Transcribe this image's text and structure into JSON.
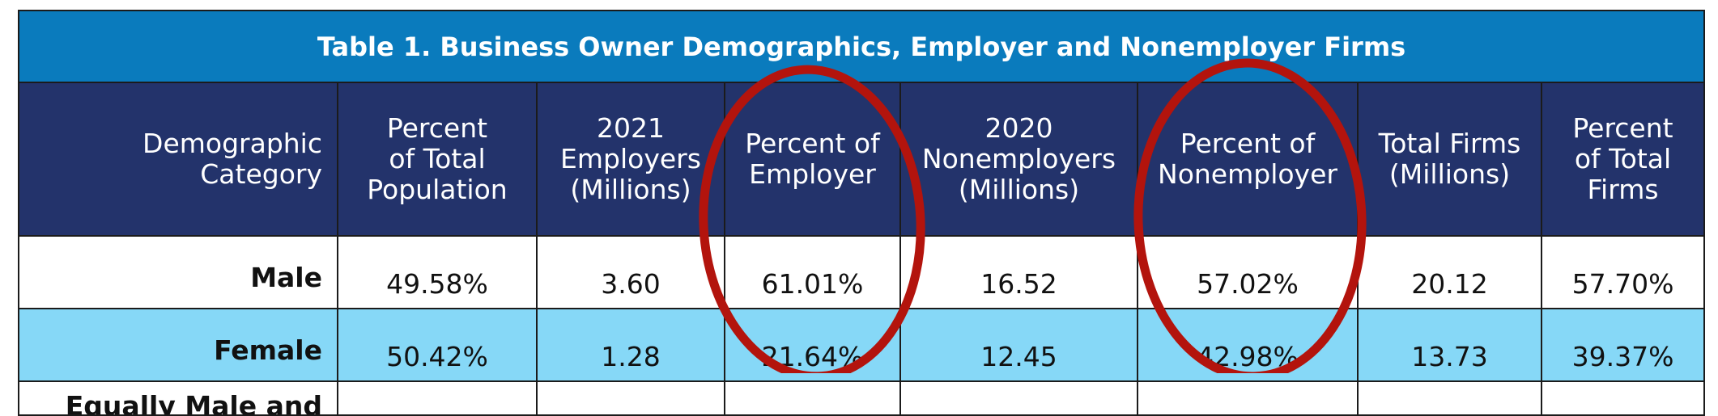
{
  "table": {
    "title": "Table 1. Business Owner Demographics, Employer and Nonemployer Firms",
    "headers": [
      [
        "Demographic",
        "Category"
      ],
      [
        "Percent",
        "of Total",
        "Population"
      ],
      [
        "2021",
        "Employers",
        "(Millions)"
      ],
      [
        "Percent of",
        "Employer"
      ],
      [
        "2020",
        "Nonemployers",
        "(Millions)"
      ],
      [
        "Percent of",
        "Nonemployer"
      ],
      [
        "Total Firms",
        "(Millions)"
      ],
      [
        "Percent",
        "of Total",
        "Firms"
      ]
    ],
    "rows": [
      {
        "label": "Male",
        "cells": [
          "49.58%",
          "3.60",
          "61.01%",
          "16.52",
          "57.02%",
          "20.12",
          "57.70%"
        ]
      },
      {
        "label": "Female",
        "cells": [
          "50.42%",
          "1.28",
          "21.64%",
          "12.45",
          "42.98%",
          "13.73",
          "39.37%"
        ]
      }
    ],
    "cut_row_label": "Equally Male and"
  },
  "colors": {
    "title_bg": "#0a7bbd",
    "header_bg": "#23336b",
    "alt_row_bg": "#86d8f7",
    "annotation_circle": "#b3140d"
  }
}
